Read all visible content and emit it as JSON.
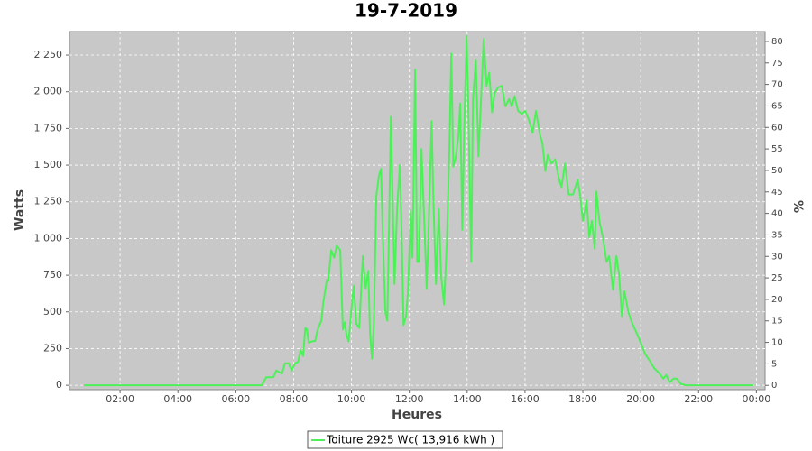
{
  "chart_data": {
    "type": "line",
    "title": "19-7-2019",
    "x_label": "Heures",
    "y_label": "Watts",
    "y2_label": "%",
    "xlim": [
      0.25,
      24.3
    ],
    "xticks": [
      {
        "value": 2,
        "label": "02:00"
      },
      {
        "value": 4,
        "label": "04:00"
      },
      {
        "value": 6,
        "label": "06:00"
      },
      {
        "value": 8,
        "label": "08:00"
      },
      {
        "value": 10,
        "label": "10:00"
      },
      {
        "value": 12,
        "label": "12:00"
      },
      {
        "value": 14,
        "label": "14:00"
      },
      {
        "value": 16,
        "label": "16:00"
      },
      {
        "value": 18,
        "label": "18:00"
      },
      {
        "value": 20,
        "label": "20:00"
      },
      {
        "value": 22,
        "label": "22:00"
      },
      {
        "value": 24,
        "label": "00:00"
      }
    ],
    "ylim": [
      -30,
      2410
    ],
    "yticks": [
      0,
      250,
      500,
      750,
      {
        "value": 1000,
        "label": "1 000"
      },
      {
        "value": 1250,
        "label": "1 250"
      },
      {
        "value": 1500,
        "label": "1 500"
      },
      {
        "value": 1750,
        "label": "1 750"
      },
      {
        "value": 2000,
        "label": "2 000"
      },
      {
        "value": 2250,
        "label": "2 250"
      }
    ],
    "y2lim": [
      -1,
      82.3
    ],
    "y2ticks": [
      0,
      5,
      10,
      15,
      20,
      25,
      30,
      35,
      40,
      45,
      50,
      55,
      60,
      65,
      70,
      75,
      80
    ],
    "grid": true,
    "legend": "bottom",
    "x": [
      0.75,
      2,
      4,
      6,
      6.9,
      7.05,
      7.3,
      7.4,
      7.6,
      7.7,
      7.83,
      7.93,
      8.05,
      8.15,
      8.24,
      8.33,
      8.4,
      8.46,
      8.52,
      8.65,
      8.74,
      8.83,
      8.96,
      9.02,
      9.15,
      9.2,
      9.3,
      9.4,
      9.49,
      9.61,
      9.7,
      9.77,
      9.83,
      9.9,
      9.99,
      10.08,
      10.17,
      10.27,
      10.39,
      10.49,
      10.58,
      10.64,
      10.71,
      10.77,
      10.86,
      10.95,
      11.02,
      11.08,
      11.17,
      11.24,
      11.3,
      11.36,
      11.42,
      11.49,
      11.58,
      11.67,
      11.74,
      11.8,
      11.89,
      11.95,
      12.05,
      12.11,
      12.2,
      12.27,
      12.33,
      12.42,
      12.52,
      12.6,
      12.67,
      12.77,
      12.83,
      12.92,
      13.02,
      13.1,
      13.2,
      13.3,
      13.39,
      13.45,
      13.52,
      13.6,
      13.7,
      13.76,
      13.83,
      13.89,
      13.98,
      14.04,
      14.14,
      14.2,
      14.3,
      14.39,
      14.48,
      14.57,
      14.67,
      14.76,
      14.86,
      14.95,
      15.07,
      15.2,
      15.32,
      15.45,
      15.54,
      15.64,
      15.76,
      15.89,
      16.01,
      16.13,
      16.26,
      16.38,
      16.51,
      16.6,
      16.7,
      16.79,
      16.92,
      17.04,
      17.17,
      17.26,
      17.38,
      17.51,
      17.66,
      17.82,
      17.91,
      18.0,
      18.13,
      18.22,
      18.31,
      18.41,
      18.47,
      18.57,
      18.69,
      18.82,
      18.91,
      19.04,
      19.16,
      19.25,
      19.35,
      19.44,
      19.57,
      19.69,
      19.85,
      20.0,
      20.16,
      20.32,
      20.47,
      20.63,
      20.78,
      20.88,
      21.0,
      21.13,
      21.25,
      21.38,
      21.56,
      22.5,
      23.9
    ],
    "series": [
      {
        "name": "Toiture 2925 Wc( 13,916 kWh )",
        "color": "#4ef05a",
        "values": [
          0,
          0,
          0,
          0,
          0,
          55,
          55,
          100,
          80,
          150,
          150,
          100,
          150,
          160,
          240,
          200,
          390,
          380,
          290,
          300,
          300,
          380,
          440,
          560,
          720,
          710,
          920,
          870,
          950,
          920,
          380,
          430,
          340,
          300,
          500,
          680,
          420,
          390,
          880,
          660,
          780,
          360,
          180,
          410,
          1290,
          1430,
          1475,
          1030,
          500,
          440,
          1090,
          1830,
          1300,
          690,
          1210,
          1500,
          1000,
          410,
          475,
          630,
          1190,
          870,
          2150,
          840,
          840,
          1610,
          1090,
          660,
          1100,
          1800,
          1270,
          690,
          1200,
          750,
          550,
          1000,
          1640,
          2260,
          1490,
          1550,
          1700,
          1920,
          1060,
          1700,
          2380,
          1890,
          840,
          1950,
          2220,
          1560,
          1950,
          2360,
          2040,
          2130,
          1860,
          1990,
          2030,
          2040,
          1900,
          1950,
          1900,
          1970,
          1870,
          1850,
          1870,
          1810,
          1720,
          1870,
          1710,
          1650,
          1460,
          1570,
          1510,
          1540,
          1410,
          1350,
          1510,
          1300,
          1300,
          1400,
          1290,
          1120,
          1260,
          1010,
          1120,
          930,
          1320,
          1120,
          1010,
          840,
          880,
          650,
          880,
          760,
          470,
          640,
          500,
          430,
          360,
          290,
          210,
          165,
          115,
          85,
          45,
          70,
          20,
          45,
          45,
          10,
          0,
          0,
          0
        ]
      }
    ]
  }
}
